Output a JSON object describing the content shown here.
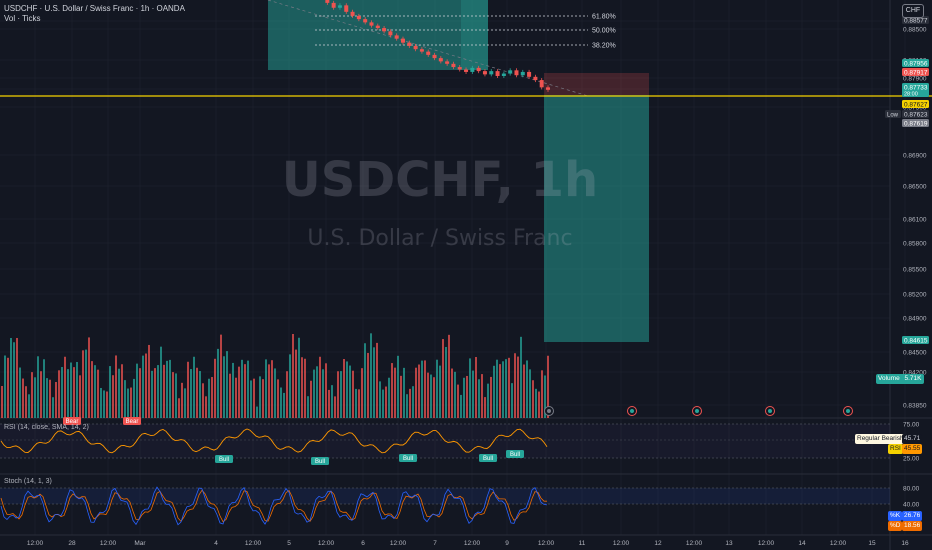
{
  "legend": {
    "line1": "USDCHF · U.S. Dollar / Swiss Franc · 1h · OANDA",
    "line2": "Vol · Ticks"
  },
  "watermark": {
    "symbol": "USDCHF, 1h",
    "name": "U.S. Dollar / Swiss Franc"
  },
  "currency_button": "CHF",
  "colors": {
    "background": "#131722",
    "up": "#26a69a",
    "down": "#ef5350",
    "current_price_line": "#f5d100",
    "rsi_line": "#ff9800",
    "stoch_k": "#2962ff",
    "stoch_d": "#ef6c00"
  },
  "panes": {
    "rsi_title": "RSI (14, close, SMA, 14, 2)",
    "stoch_title": "Stoch (14, 1, 3)",
    "rsi_badges": {
      "regular_bearish": "Regular Bearish",
      "regular_bearish_value": "45.71",
      "rsi_label": "RSI",
      "rsi_value": "45.55"
    },
    "stoch_badges": {
      "k_label": "%K",
      "k_value": "26.76",
      "d_label": "%D",
      "d_value": "18.56"
    },
    "volume_badge": {
      "label": "Volume",
      "value": "5.71K"
    }
  },
  "chart_data": [
    {
      "type": "candlestick",
      "title": "USDCHF, 1h",
      "y_axis_ticks": [
        "0.88577",
        "0.88500",
        "0.88100",
        "0.87900",
        "0.87700",
        "0.87500",
        "0.86900",
        "0.86500",
        "0.86100",
        "0.85800",
        "0.85500",
        "0.85200",
        "0.84900",
        "0.84500",
        "0.84200",
        "0.83850"
      ],
      "x_axis_ticks": [
        "12:00",
        "28",
        "12:00",
        "Mar",
        "4",
        "12:00",
        "5",
        "12:00",
        "6",
        "12:00",
        "7",
        "12:00",
        "9",
        "12:00",
        "11",
        "12:00",
        "12",
        "12:00",
        "13",
        "12:00",
        "14",
        "12:00",
        "15",
        "16"
      ],
      "price_labels": [
        {
          "label": "",
          "value": "0.88577",
          "kind": "dark"
        },
        {
          "label": "",
          "value": "0.87956",
          "kind": "up"
        },
        {
          "label": "",
          "value": "0.87917",
          "kind": "down"
        },
        {
          "label": "",
          "value": "0.87733",
          "kind": "up",
          "sub": "28:00"
        },
        {
          "label": "",
          "value": "0.87627",
          "kind": "current"
        },
        {
          "label": "Low",
          "value": "0.87623",
          "kind": "dark"
        },
        {
          "label": "",
          "value": "0.87619",
          "kind": "gray"
        },
        {
          "label": "",
          "value": "0.84615",
          "kind": "up"
        }
      ],
      "fibonacci": [
        {
          "ratio": "61.80%"
        },
        {
          "ratio": "50.00%"
        },
        {
          "ratio": "38.20%"
        }
      ],
      "series_close": [
        0.8915,
        0.8912,
        0.8908,
        0.891,
        0.8904,
        0.8899,
        0.8896,
        0.8892,
        0.8888,
        0.889,
        0.8886,
        0.888,
        0.8874,
        0.8877,
        0.8869,
        0.8864,
        0.886,
        0.8856,
        0.8852,
        0.8849,
        0.8845,
        0.884,
        0.8836,
        0.8831,
        0.8827,
        0.8823,
        0.882,
        0.8816,
        0.8812,
        0.8808,
        0.8805,
        0.8801,
        0.8798,
        0.8795,
        0.88,
        0.8796,
        0.8792,
        0.8796,
        0.879,
        0.8793,
        0.8797,
        0.8791,
        0.8795,
        0.8789,
        0.8785,
        0.8776,
        0.8773
      ],
      "current_price": 0.87627
    },
    {
      "type": "bar",
      "title": "Volume",
      "value": "5.71K"
    },
    {
      "type": "line",
      "title": "RSI (14, close, SMA, 14, 2)",
      "levels": [
        "75.00",
        "50.00",
        "25.00"
      ],
      "divergence_labels": [
        "Bear",
        "Bear",
        "Bull",
        "Bull",
        "Bull",
        "Bull",
        "Bull"
      ]
    },
    {
      "type": "line",
      "title": "Stoch (14, 1, 3)",
      "levels": [
        "80.00",
        "40.00"
      ]
    }
  ]
}
